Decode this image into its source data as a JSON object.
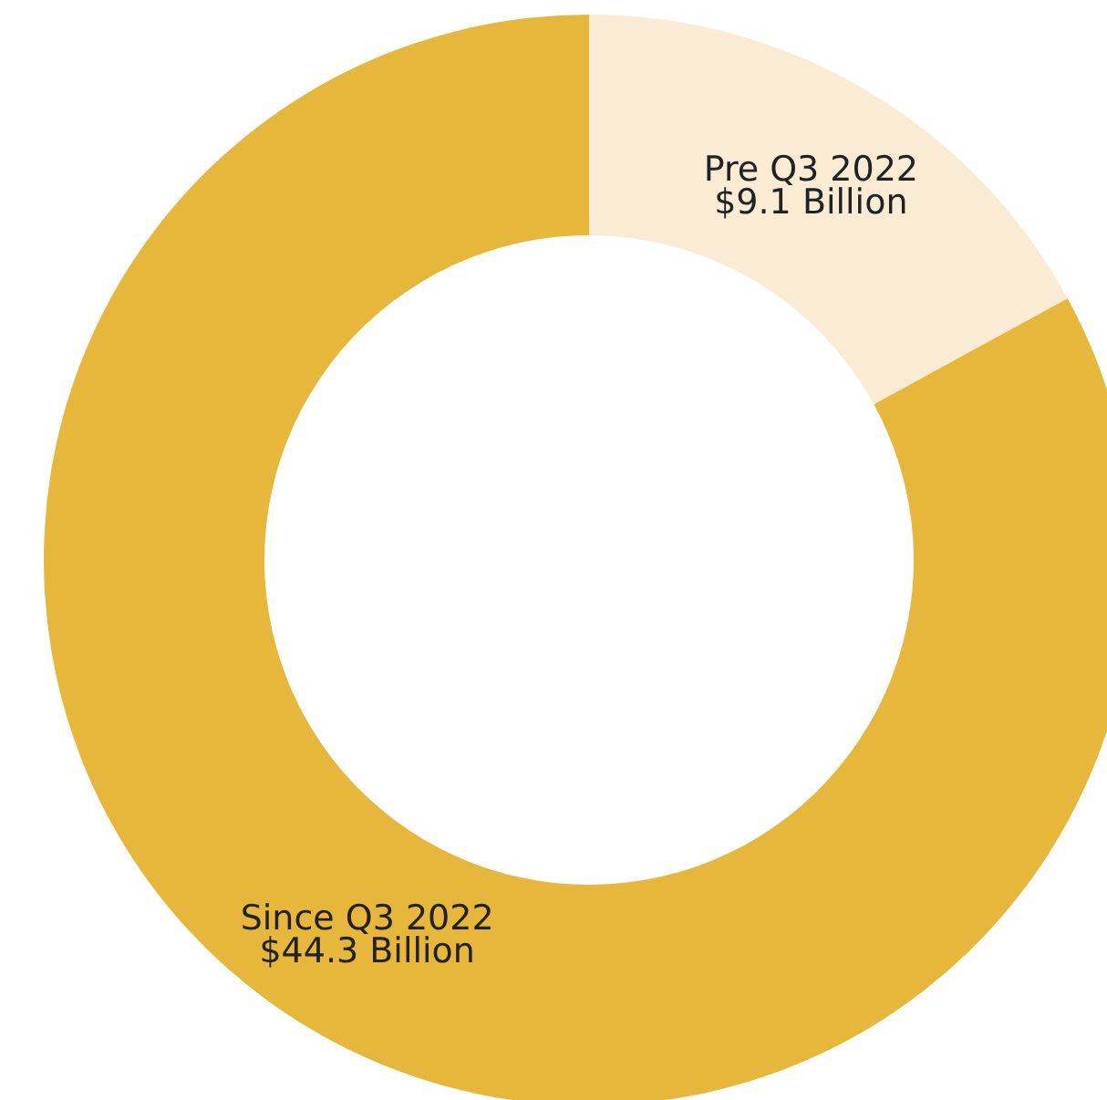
{
  "chart_data": {
    "type": "donut",
    "categories": [
      "Pre Q3 2022",
      "Since Q3 2022"
    ],
    "values": [
      9.1,
      44.3
    ],
    "colors": [
      "#f9ebd4",
      "#e6b73b"
    ],
    "value_labels": [
      "$9.1 Billion",
      "$44.3 Billion"
    ]
  }
}
